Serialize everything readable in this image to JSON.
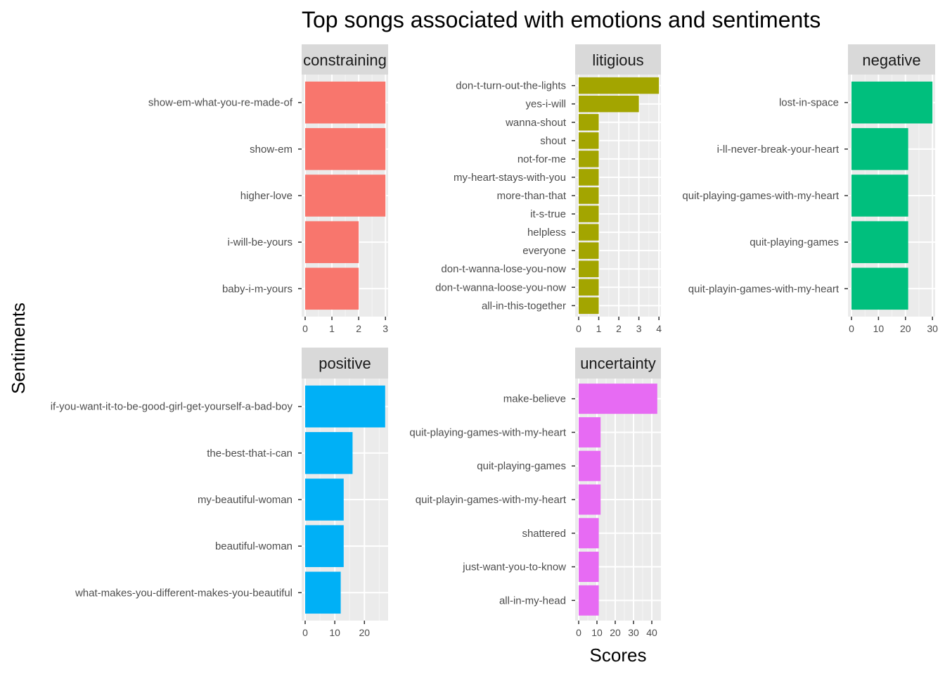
{
  "chart_data": {
    "type": "bar",
    "orientation": "horizontal",
    "title": "Top songs associated with emotions and sentiments",
    "xlabel": "Scores",
    "ylabel": "Sentiments",
    "grid": true,
    "legend": "none",
    "panels": [
      {
        "name": "constraining",
        "color": "#F8766D",
        "xlim": [
          0,
          3.1
        ],
        "ticks": [
          0,
          1,
          2,
          3
        ],
        "categories": [
          "show-em-what-you-re-made-of",
          "show-em",
          "higher-love",
          "i-will-be-yours",
          "baby-i-m-yours"
        ],
        "values": [
          3,
          3,
          3,
          2,
          2
        ]
      },
      {
        "name": "litigious",
        "color": "#A3A500",
        "xlim": [
          0,
          4.1
        ],
        "ticks": [
          0,
          1,
          2,
          3,
          4
        ],
        "categories": [
          "don-t-turn-out-the-lights",
          "yes-i-will",
          "wanna-shout",
          "shout",
          "not-for-me",
          "my-heart-stays-with-you",
          "more-than-that",
          "it-s-true",
          "helpless",
          "everyone",
          "don-t-wanna-lose-you-now",
          "don-t-wanna-loose-you-now",
          "all-in-this-together"
        ],
        "values": [
          4,
          3,
          1,
          1,
          1,
          1,
          1,
          1,
          1,
          1,
          1,
          1,
          1
        ]
      },
      {
        "name": "negative",
        "color": "#00BF7D",
        "xlim": [
          0,
          31
        ],
        "ticks": [
          0,
          10,
          20,
          30
        ],
        "categories": [
          "lost-in-space",
          "i-ll-never-break-your-heart",
          "quit-playing-games-with-my-heart",
          "quit-playing-games",
          "quit-playin-games-with-my-heart"
        ],
        "values": [
          30,
          21,
          21,
          21,
          21
        ]
      },
      {
        "name": "positive",
        "color": "#00B0F6",
        "xlim": [
          0,
          28
        ],
        "ticks": [
          0,
          10,
          20
        ],
        "categories": [
          "if-you-want-it-to-be-good-girl-get-yourself-a-bad-boy",
          "the-best-that-i-can",
          "my-beautiful-woman",
          "beautiful-woman",
          "what-makes-you-different-makes-you-beautiful"
        ],
        "values": [
          27,
          16,
          13,
          13,
          12
        ]
      },
      {
        "name": "uncertainty",
        "color": "#E76BF3",
        "xlim": [
          0,
          45
        ],
        "ticks": [
          0,
          10,
          20,
          30,
          40
        ],
        "categories": [
          "make-believe",
          "quit-playing-games-with-my-heart",
          "quit-playing-games",
          "quit-playin-games-with-my-heart",
          "shattered",
          "just-want-you-to-know",
          "all-in-my-head"
        ],
        "values": [
          43,
          12,
          12,
          12,
          11,
          11,
          11
        ]
      }
    ]
  }
}
